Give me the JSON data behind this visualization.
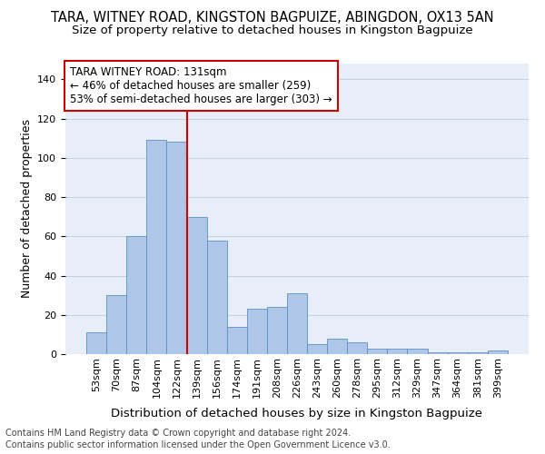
{
  "title1": "TARA, WITNEY ROAD, KINGSTON BAGPUIZE, ABINGDON, OX13 5AN",
  "title2": "Size of property relative to detached houses in Kingston Bagpuize",
  "xlabel": "Distribution of detached houses by size in Kingston Bagpuize",
  "ylabel": "Number of detached properties",
  "categories": [
    "53sqm",
    "70sqm",
    "87sqm",
    "104sqm",
    "122sqm",
    "139sqm",
    "156sqm",
    "174sqm",
    "191sqm",
    "208sqm",
    "226sqm",
    "243sqm",
    "260sqm",
    "278sqm",
    "295sqm",
    "312sqm",
    "329sqm",
    "347sqm",
    "364sqm",
    "381sqm",
    "399sqm"
  ],
  "values": [
    11,
    30,
    60,
    109,
    108,
    70,
    58,
    14,
    23,
    24,
    31,
    5,
    8,
    6,
    3,
    3,
    3,
    1,
    1,
    1,
    2
  ],
  "bar_color": "#aec6e8",
  "bar_edgecolor": "#5b8fc3",
  "vline_x": 5.0,
  "vline_color": "#cc0000",
  "annotation_text": "TARA WITNEY ROAD: 131sqm\n← 46% of detached houses are smaller (259)\n53% of semi-detached houses are larger (303) →",
  "annotation_box_color": "#ffffff",
  "annotation_box_edgecolor": "#cc0000",
  "ylim": [
    0,
    148
  ],
  "yticks": [
    0,
    20,
    40,
    60,
    80,
    100,
    120,
    140
  ],
  "background_color": "#e8eef8",
  "footer1": "Contains HM Land Registry data © Crown copyright and database right 2024.",
  "footer2": "Contains public sector information licensed under the Open Government Licence v3.0.",
  "title_fontsize": 10.5,
  "subtitle_fontsize": 9.5,
  "tick_fontsize": 8,
  "ylabel_fontsize": 9,
  "xlabel_fontsize": 9.5,
  "footer_fontsize": 7
}
